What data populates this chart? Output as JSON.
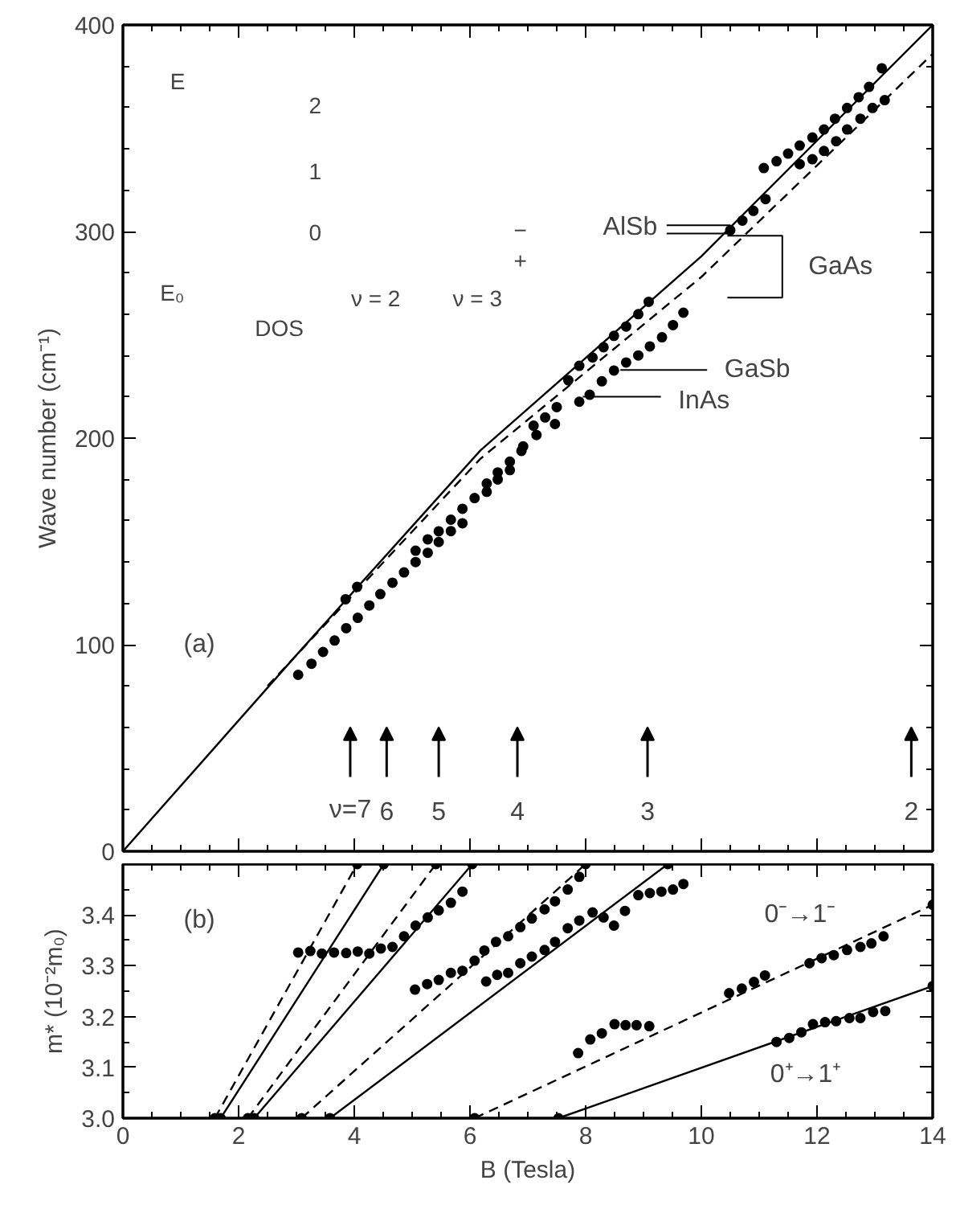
{
  "chart_data": [
    {
      "type": "scatter",
      "ylabel": "Wave number (cm⁻¹)",
      "xlim": [
        0,
        14
      ],
      "ylim": [
        0,
        400
      ],
      "tick_labels": "y",
      "marker": "circle",
      "xticks": [
        0,
        2,
        4,
        6,
        8,
        10,
        12,
        14,
        {
          "value": 0.5,
          "label": null
        },
        {
          "value": 1,
          "label": null
        },
        {
          "value": 1.5,
          "label": null
        },
        {
          "value": 2.5,
          "label": null
        },
        {
          "value": 3,
          "label": null
        },
        {
          "value": 3.5,
          "label": null
        },
        {
          "value": 4.5,
          "label": null
        },
        {
          "value": 5,
          "label": null
        },
        {
          "value": 5.5,
          "label": null
        },
        {
          "value": 6.5,
          "label": null
        },
        {
          "value": 7,
          "label": null
        },
        {
          "value": 7.5,
          "label": null
        },
        {
          "value": 8.5,
          "label": null
        },
        {
          "value": 9,
          "label": null
        },
        {
          "value": 9.5,
          "label": null
        },
        {
          "value": 10.5,
          "label": null
        },
        {
          "value": 11,
          "label": null
        },
        {
          "value": 11.5,
          "label": null
        },
        {
          "value": 12.5,
          "label": null
        },
        {
          "value": 13,
          "label": null
        },
        {
          "value": 13.5,
          "label": null
        }
      ],
      "yticks": [
        0,
        100,
        200,
        300,
        400,
        {
          "value": 20,
          "label": null
        },
        {
          "value": 40,
          "label": null
        },
        {
          "value": 60,
          "label": null
        },
        {
          "value": 80,
          "label": null
        },
        {
          "value": 120,
          "label": null
        },
        {
          "value": 140,
          "label": null
        },
        {
          "value": 160,
          "label": null
        },
        {
          "value": 180,
          "label": null
        },
        {
          "value": 220,
          "label": null
        },
        {
          "value": 240,
          "label": null
        },
        {
          "value": 260,
          "label": null
        },
        {
          "value": 280,
          "label": null
        },
        {
          "value": 320,
          "label": null
        },
        {
          "value": 340,
          "label": null
        },
        {
          "value": 360,
          "label": null
        },
        {
          "value": 380,
          "label": null
        }
      ],
      "series": [
        {
          "color": "#000000",
          "x": [
            11.08,
            11.3,
            11.5,
            11.7,
            11.92,
            12.12,
            12.31,
            12.52,
            12.72,
            12.9,
            13.12
          ],
          "values": [
            330.7,
            334,
            337.7,
            341.6,
            345.5,
            349.4,
            354.6,
            359.8,
            365,
            370,
            379
          ]
        },
        {
          "color": "#000000",
          "x": [
            10.5,
            10.71,
            10.9,
            11.11,
            11.7,
            11.92,
            12.12,
            12.33,
            12.52,
            12.75,
            12.96,
            13.17
          ],
          "values": [
            300.6,
            305.3,
            310,
            315.7,
            332.6,
            335,
            339,
            343.7,
            349.4,
            354.6,
            359.8,
            363.6
          ]
        },
        {
          "color": "#000000",
          "x": [
            3.85,
            4.05,
            5.06,
            5.27,
            5.46,
            5.67,
            5.87,
            6.08,
            6.29,
            6.48,
            6.69,
            6.89,
            7.1,
            7.3,
            7.5,
            7.7,
            7.89,
            8.12,
            8.31,
            8.49,
            8.7,
            8.91,
            9.09
          ],
          "values": [
            122,
            128,
            145.5,
            151,
            154.9,
            160.5,
            165.8,
            171,
            178,
            183.4,
            188.6,
            193.8,
            206,
            210,
            215,
            228,
            235,
            239,
            244,
            249.5,
            254,
            260,
            266
          ]
        },
        {
          "color": "#000000",
          "x": [
            3.03,
            3.26,
            3.46,
            3.66,
            3.86,
            4.06,
            4.26,
            4.45,
            4.66,
            4.86,
            5.06,
            5.27,
            5.46,
            5.67,
            5.87,
            6.29,
            6.48,
            6.69,
            6.92,
            7.15,
            7.47,
            7.89,
            8.07,
            8.28,
            8.49,
            8.7,
            8.91,
            9.11,
            9.32,
            9.51,
            9.69
          ],
          "values": [
            85.4,
            90.8,
            96.5,
            102,
            108,
            113,
            119,
            124.5,
            130,
            135,
            140,
            144.5,
            149.7,
            155,
            158.8,
            174,
            180,
            184.5,
            196,
            201.5,
            206.8,
            217.6,
            221,
            227.5,
            232.7,
            236.6,
            240,
            244.4,
            248.8,
            254.7,
            260.7
          ]
        },
        {
          "type": "line",
          "marker": "none",
          "color": "#000000",
          "line_style": "solid",
          "x": [
            0,
            3,
            6.18,
            10,
            14
          ],
          "values": [
            0,
            95,
            194,
            288,
            400
          ]
        },
        {
          "type": "line",
          "marker": "none",
          "color": "#000000",
          "line_style": "dashed",
          "x": [
            2.5,
            6.18,
            10,
            14
          ],
          "values": [
            80,
            190,
            278,
            386
          ]
        }
      ],
      "annotations": [
        "(a)",
        {
          "text": "AlSb",
          "x": 10.5,
          "y": 301
        },
        {
          "text": "GaAs",
          "x": 10.45,
          "y": 298
        },
        "GaSb",
        "InAs",
        "E",
        "E₀",
        "DOS",
        "2",
        "1",
        "0",
        "ν = 2",
        "ν = 3",
        "−",
        "+",
        "ν=7",
        "6",
        "5",
        "4",
        "3",
        "2"
      ]
    },
    {
      "type": "scatter",
      "xlabel": "B (Tesla)",
      "ylabel": "m* (10⁻²m₀)",
      "xlim": [
        0,
        14
      ],
      "ylim": [
        3.0,
        3.5
      ],
      "marker": "circle",
      "xticks": [
        0,
        2,
        4,
        6,
        8,
        10,
        12,
        14,
        {
          "value": 0.5,
          "label": null
        },
        {
          "value": 1,
          "label": null
        },
        {
          "value": 1.5,
          "label": null
        },
        {
          "value": 2.5,
          "label": null
        },
        {
          "value": 3,
          "label": null
        },
        {
          "value": 3.5,
          "label": null
        },
        {
          "value": 4.5,
          "label": null
        },
        {
          "value": 5,
          "label": null
        },
        {
          "value": 5.5,
          "label": null
        },
        {
          "value": 6.5,
          "label": null
        },
        {
          "value": 7,
          "label": null
        },
        {
          "value": 7.5,
          "label": null
        },
        {
          "value": 8.5,
          "label": null
        },
        {
          "value": 9,
          "label": null
        },
        {
          "value": 9.5,
          "label": null
        },
        {
          "value": 10.5,
          "label": null
        },
        {
          "value": 11,
          "label": null
        },
        {
          "value": 11.5,
          "label": null
        },
        {
          "value": 12.5,
          "label": null
        },
        {
          "value": 13,
          "label": null
        },
        {
          "value": 13.5,
          "label": null
        }
      ],
      "yticks": [
        {
          "value": 3.0,
          "label": "3.0"
        },
        {
          "value": 3.1,
          "label": "3.1"
        },
        {
          "value": 3.2,
          "label": "3.2"
        },
        {
          "value": 3.3,
          "label": "3.3"
        },
        {
          "value": 3.4,
          "label": "3.4"
        },
        {
          "value": 3.05,
          "label": null
        },
        {
          "value": 3.15,
          "label": null
        },
        {
          "value": 3.25,
          "label": null
        },
        {
          "value": 3.35,
          "label": null
        },
        {
          "value": 3.45,
          "label": null
        }
      ],
      "series": [
        {
          "type": "scatter",
          "color": "#000000",
          "x": [
            3.03,
            3.24,
            3.44,
            3.65,
            3.86,
            4.06,
            4.26,
            4.46,
            4.66,
            4.86,
            5.06,
            5.27,
            5.46,
            5.67,
            5.87
          ],
          "values": [
            3.326,
            3.329,
            3.324,
            3.326,
            3.325,
            3.328,
            3.324,
            3.334,
            3.337,
            3.358,
            3.379,
            3.395,
            3.409,
            3.424,
            3.446
          ]
        },
        {
          "type": "scatter",
          "color": "#000000",
          "x": [
            5.05,
            5.26,
            5.46,
            5.67,
            5.87,
            6.08,
            6.25,
            6.45,
            6.66,
            6.87,
            7.07,
            7.29,
            7.47,
            7.69,
            7.89
          ],
          "values": [
            3.253,
            3.264,
            3.272,
            3.286,
            3.29,
            3.31,
            3.33,
            3.347,
            3.358,
            3.376,
            3.393,
            3.411,
            3.427,
            3.45,
            3.475
          ]
        },
        {
          "type": "scatter",
          "color": "#000000",
          "x": [
            6.28,
            6.47,
            6.66,
            6.87,
            7.07,
            7.29,
            7.47,
            7.69,
            7.89,
            8.12,
            8.31,
            8.49,
            8.68,
            8.91,
            9.11,
            9.31,
            9.51,
            9.69
          ],
          "values": [
            3.269,
            3.282,
            3.286,
            3.305,
            3.318,
            3.331,
            3.347,
            3.374,
            3.389,
            3.405,
            3.395,
            3.379,
            3.408,
            3.439,
            3.443,
            3.446,
            3.45,
            3.461
          ]
        },
        {
          "type": "scatter",
          "color": "#000000",
          "x": [
            7.87,
            8.08,
            8.28,
            8.5,
            8.69,
            8.88,
            9.1
          ],
          "values": [
            3.128,
            3.155,
            3.167,
            3.185,
            3.183,
            3.183,
            3.181
          ]
        },
        {
          "type": "scatter",
          "color": "#000000",
          "x": [
            10.48,
            10.7,
            10.91,
            11.1,
            11.87,
            12.08,
            12.29,
            12.52,
            12.75,
            12.94,
            13.15
          ],
          "values": [
            3.246,
            3.255,
            3.268,
            3.281,
            3.305,
            3.315,
            3.321,
            3.331,
            3.337,
            3.344,
            3.358
          ]
        },
        {
          "type": "scatter",
          "color": "#000000",
          "x": [
            11.3,
            11.52,
            11.73,
            11.93,
            12.14,
            12.33,
            12.56,
            12.75,
            12.97,
            13.18
          ],
          "values": [
            3.15,
            3.158,
            3.169,
            3.185,
            3.189,
            3.191,
            3.197,
            3.197,
            3.209,
            3.211
          ]
        },
        {
          "type": "line",
          "color": "#000000",
          "line_style": "dashed",
          "x": [
            1.59,
            4.05
          ],
          "values": [
            3.0,
            3.5
          ]
        },
        {
          "type": "line",
          "color": "#000000",
          "line_style": "solid",
          "x": [
            1.69,
            4.51
          ],
          "values": [
            3.0,
            3.5
          ]
        },
        {
          "type": "line",
          "color": "#000000",
          "line_style": "dashed",
          "x": [
            2.16,
            5.41
          ],
          "values": [
            3.0,
            3.5
          ]
        },
        {
          "type": "line",
          "color": "#000000",
          "line_style": "solid",
          "x": [
            2.27,
            6.04
          ],
          "values": [
            3.0,
            3.5
          ]
        },
        {
          "type": "line",
          "color": "#000000",
          "line_style": "dashed",
          "x": [
            3.09,
            8.0
          ],
          "values": [
            3.0,
            3.5
          ]
        },
        {
          "type": "line",
          "color": "#000000",
          "line_style": "solid",
          "x": [
            3.58,
            9.42
          ],
          "values": [
            3.0,
            3.5
          ]
        },
        {
          "type": "line",
          "color": "#000000",
          "line_style": "dashed",
          "x": [
            6.08,
            14
          ],
          "values": [
            3.0,
            3.42
          ]
        },
        {
          "type": "line",
          "color": "#000000",
          "line_style": "solid",
          "x": [
            7.53,
            14
          ],
          "values": [
            3.0,
            3.26
          ]
        }
      ],
      "annotations": [
        "(b)",
        "0⁻→1⁻",
        "0⁺→1⁺"
      ]
    }
  ]
}
